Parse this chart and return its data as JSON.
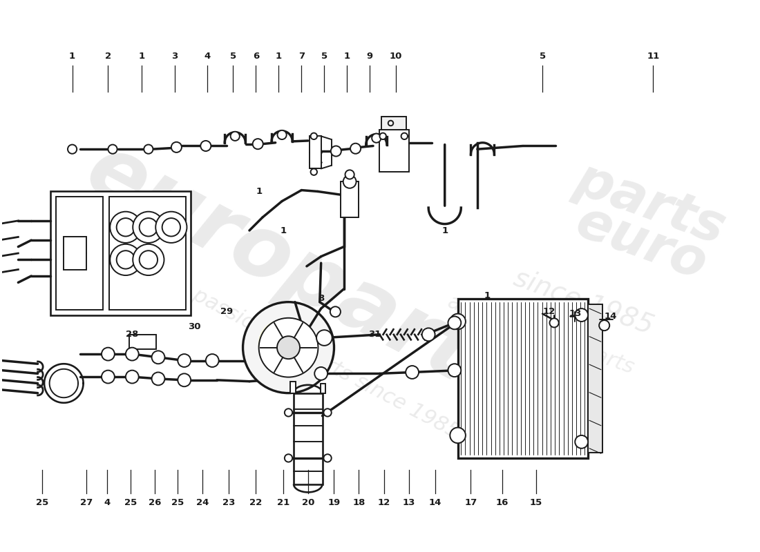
{
  "bg_color": "#ffffff",
  "line_color": "#1a1a1a",
  "lw": 1.4,
  "fig_w": 11.0,
  "fig_h": 8.0,
  "dpi": 100,
  "top_labels": [
    [
      "1",
      108,
      62
    ],
    [
      "2",
      163,
      62
    ],
    [
      "1",
      215,
      62
    ],
    [
      "3",
      265,
      62
    ],
    [
      "4",
      315,
      62
    ],
    [
      "5",
      355,
      62
    ],
    [
      "6",
      390,
      62
    ],
    [
      "1",
      425,
      62
    ],
    [
      "7",
      460,
      62
    ],
    [
      "5",
      495,
      62
    ],
    [
      "1",
      530,
      62
    ],
    [
      "9",
      565,
      62
    ],
    [
      "10",
      605,
      62
    ],
    [
      "5",
      830,
      62
    ],
    [
      "11",
      1000,
      62
    ]
  ],
  "bottom_labels": [
    [
      "25",
      62,
      748
    ],
    [
      "27",
      130,
      748
    ],
    [
      "4",
      162,
      748
    ],
    [
      "25",
      198,
      748
    ],
    [
      "26",
      235,
      748
    ],
    [
      "25",
      270,
      748
    ],
    [
      "24",
      308,
      748
    ],
    [
      "23",
      348,
      748
    ],
    [
      "22",
      390,
      748
    ],
    [
      "21",
      432,
      748
    ],
    [
      "20",
      470,
      748
    ],
    [
      "19",
      510,
      748
    ],
    [
      "18",
      548,
      748
    ],
    [
      "12",
      587,
      748
    ],
    [
      "13",
      625,
      748
    ],
    [
      "14",
      665,
      748
    ],
    [
      "17",
      720,
      748
    ],
    [
      "16",
      768,
      748
    ],
    [
      "15",
      820,
      748
    ]
  ],
  "misc_labels": [
    [
      "1",
      432,
      330
    ],
    [
      "8",
      490,
      435
    ],
    [
      "31",
      572,
      490
    ],
    [
      "1",
      680,
      330
    ],
    [
      "1",
      745,
      430
    ],
    [
      "12",
      840,
      455
    ],
    [
      "13",
      880,
      458
    ],
    [
      "14",
      935,
      462
    ],
    [
      "28",
      200,
      490
    ],
    [
      "29",
      345,
      455
    ],
    [
      "30",
      295,
      478
    ],
    [
      "1",
      395,
      270
    ]
  ],
  "wm1_text": "europarts",
  "wm2_text": "a passion for parts since 1985",
  "wm_color": "#cccccc",
  "wm_alpha": 0.4
}
